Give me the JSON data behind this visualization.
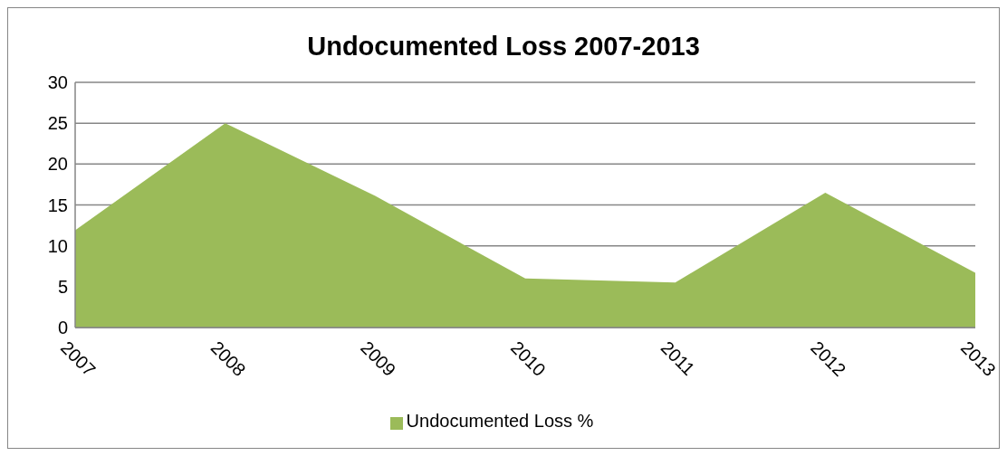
{
  "chart_data": {
    "type": "area",
    "title": "Undocumented Loss 2007-2013",
    "categories": [
      "2007",
      "2008",
      "2009",
      "2010",
      "2011",
      "2012",
      "2013"
    ],
    "series": [
      {
        "name": "Undocumented Loss %",
        "color": "#9bbb59",
        "values": [
          11.9,
          25,
          16.1,
          6,
          5.5,
          16.5,
          6.7
        ]
      }
    ],
    "ylim": [
      0,
      30
    ],
    "yticks": [
      0,
      5,
      10,
      15,
      20,
      25,
      30
    ],
    "grid": "y",
    "legend": "bottom"
  }
}
